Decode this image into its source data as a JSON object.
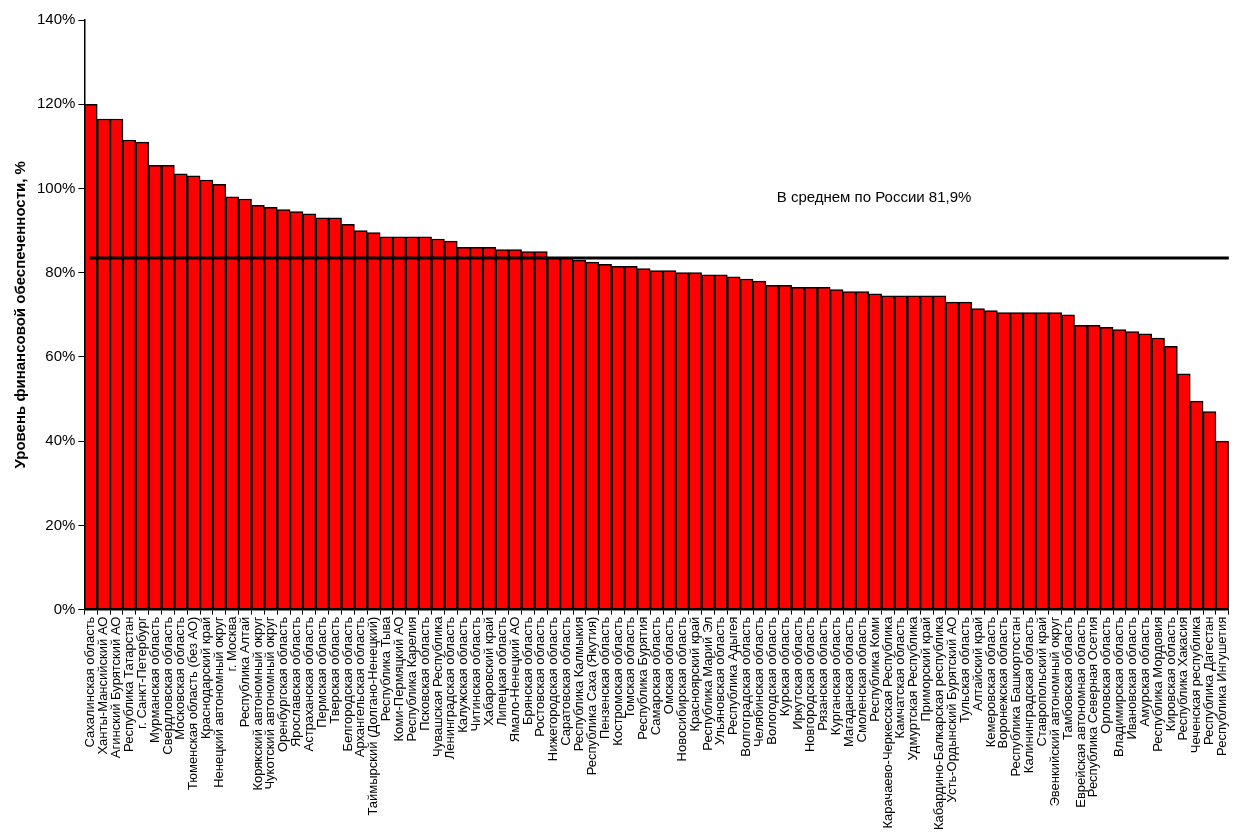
{
  "chart_data": {
    "type": "bar",
    "ylabel": "Уровень финансовой обеспеченности, %",
    "categories": [
      "Сахалинская область",
      "Ханты-Мансийский АО",
      "Агинский Бурятский АО",
      "Республика Татарстан",
      "г. Санкт-Петербург",
      "Мурманская область",
      "Свердловская область",
      "Московская область",
      "Тюменская область (без АО)",
      "Краснодарский край",
      "Ненецкий автономный округ",
      "г. Москва",
      "Республика Алтай",
      "Корякский автономный округ",
      "Чукотский автономный округ",
      "Оренбургская область",
      "Ярославская область",
      "Астраханская область",
      "Пермская область",
      "Тверская область",
      "Белгородская область",
      "Архангельская область",
      "Таймырский (Долгано-Ненецкий)",
      "Республика Тыва",
      "Коми-Пермяцкий АО",
      "Республика Карелия",
      "Псковская область",
      "Чувашская Республика",
      "Ленинградская область",
      "Калужская область",
      "Читинская область",
      "Хабаровский край",
      "Липецкая область",
      "Ямало-Ненецкий АО",
      "Брянская область",
      "Ростовская область",
      "Нижегородская область",
      "Саратовская область",
      "Республика Калмыкия",
      "Республика Саха (Якутия)",
      "Пензенская область",
      "Костромская область",
      "Томская область",
      "Республика Бурятия",
      "Самарская область",
      "Омская область",
      "Новосибирская область",
      "Красноярский край",
      "Республика Марий Эл",
      "Ульяновская область",
      "Республика Адыгея",
      "Волгоградская область",
      "Челябинская область",
      "Вологодская область",
      "Курская область",
      "Иркутская область",
      "Новгородская область",
      "Рязанская область",
      "Курганская область",
      "Магаданская область",
      "Смоленская область",
      "Республика Коми",
      "Карачаево-Черкесская Республика",
      "Камчатская область",
      "Удмуртская Республика",
      "Приморский край",
      "Кабардино-Балкарская республика",
      "Усть-Ордынский Бурятский АО",
      "Тульская область",
      "Алтайский край",
      "Кемеровская область",
      "Воронежская область",
      "Республика Башкортостан",
      "Калининградская область",
      "Ставропольский край",
      "Эвенкийский автономный округ",
      "Тамбовская область",
      "Еврейская автономная область",
      "Республика Северная Осетия",
      "Орловская область",
      "Владимирская область",
      "Ивановская область",
      "Амурская область",
      "Республика Мордовия",
      "Кировская область",
      "Республика Хакасия",
      "Чеченская республика",
      "Республика Дагестан",
      "Республика Ингушетия"
    ],
    "values": [
      120,
      116.5,
      116.5,
      111.5,
      111,
      105.5,
      105.5,
      103.5,
      103,
      102,
      101,
      98,
      97.5,
      96,
      95.5,
      95,
      94.5,
      94,
      93,
      93,
      91.5,
      90,
      89.5,
      88.5,
      88.5,
      88.5,
      88.5,
      88,
      87.5,
      86,
      86,
      86,
      85.5,
      85.5,
      85,
      85,
      83.5,
      83.5,
      83,
      82.5,
      82,
      81.5,
      81.5,
      81,
      80.5,
      80.5,
      80,
      80,
      79.5,
      79.5,
      79,
      78.5,
      78,
      77,
      77,
      76.5,
      76.5,
      76.5,
      76,
      75.5,
      75.5,
      75,
      74.5,
      74.5,
      74.5,
      74.5,
      74.5,
      73,
      73,
      71.5,
      71,
      70.5,
      70.5,
      70.5,
      70.5,
      70.5,
      70,
      67.5,
      67.5,
      67,
      66.5,
      66,
      65.5,
      64.5,
      62.5,
      56,
      49.5,
      47,
      40
    ],
    "color": "#ff0000",
    "ylim": [
      0,
      140
    ],
    "yticks": [
      {
        "value": 0,
        "label": "0%"
      },
      {
        "value": 20,
        "label": "20%"
      },
      {
        "value": 40,
        "label": "40%"
      },
      {
        "value": 60,
        "label": "60%"
      },
      {
        "value": 80,
        "label": "80%"
      },
      {
        "value": 100,
        "label": "100%"
      },
      {
        "value": 120,
        "label": "120%"
      },
      {
        "value": 140,
        "label": "140%"
      }
    ],
    "ref_lines": [
      {
        "axis": "y",
        "value": 83.5,
        "label": "В среднем по России 81,9%",
        "color": "#000000"
      }
    ],
    "grid": false,
    "legend": false
  }
}
